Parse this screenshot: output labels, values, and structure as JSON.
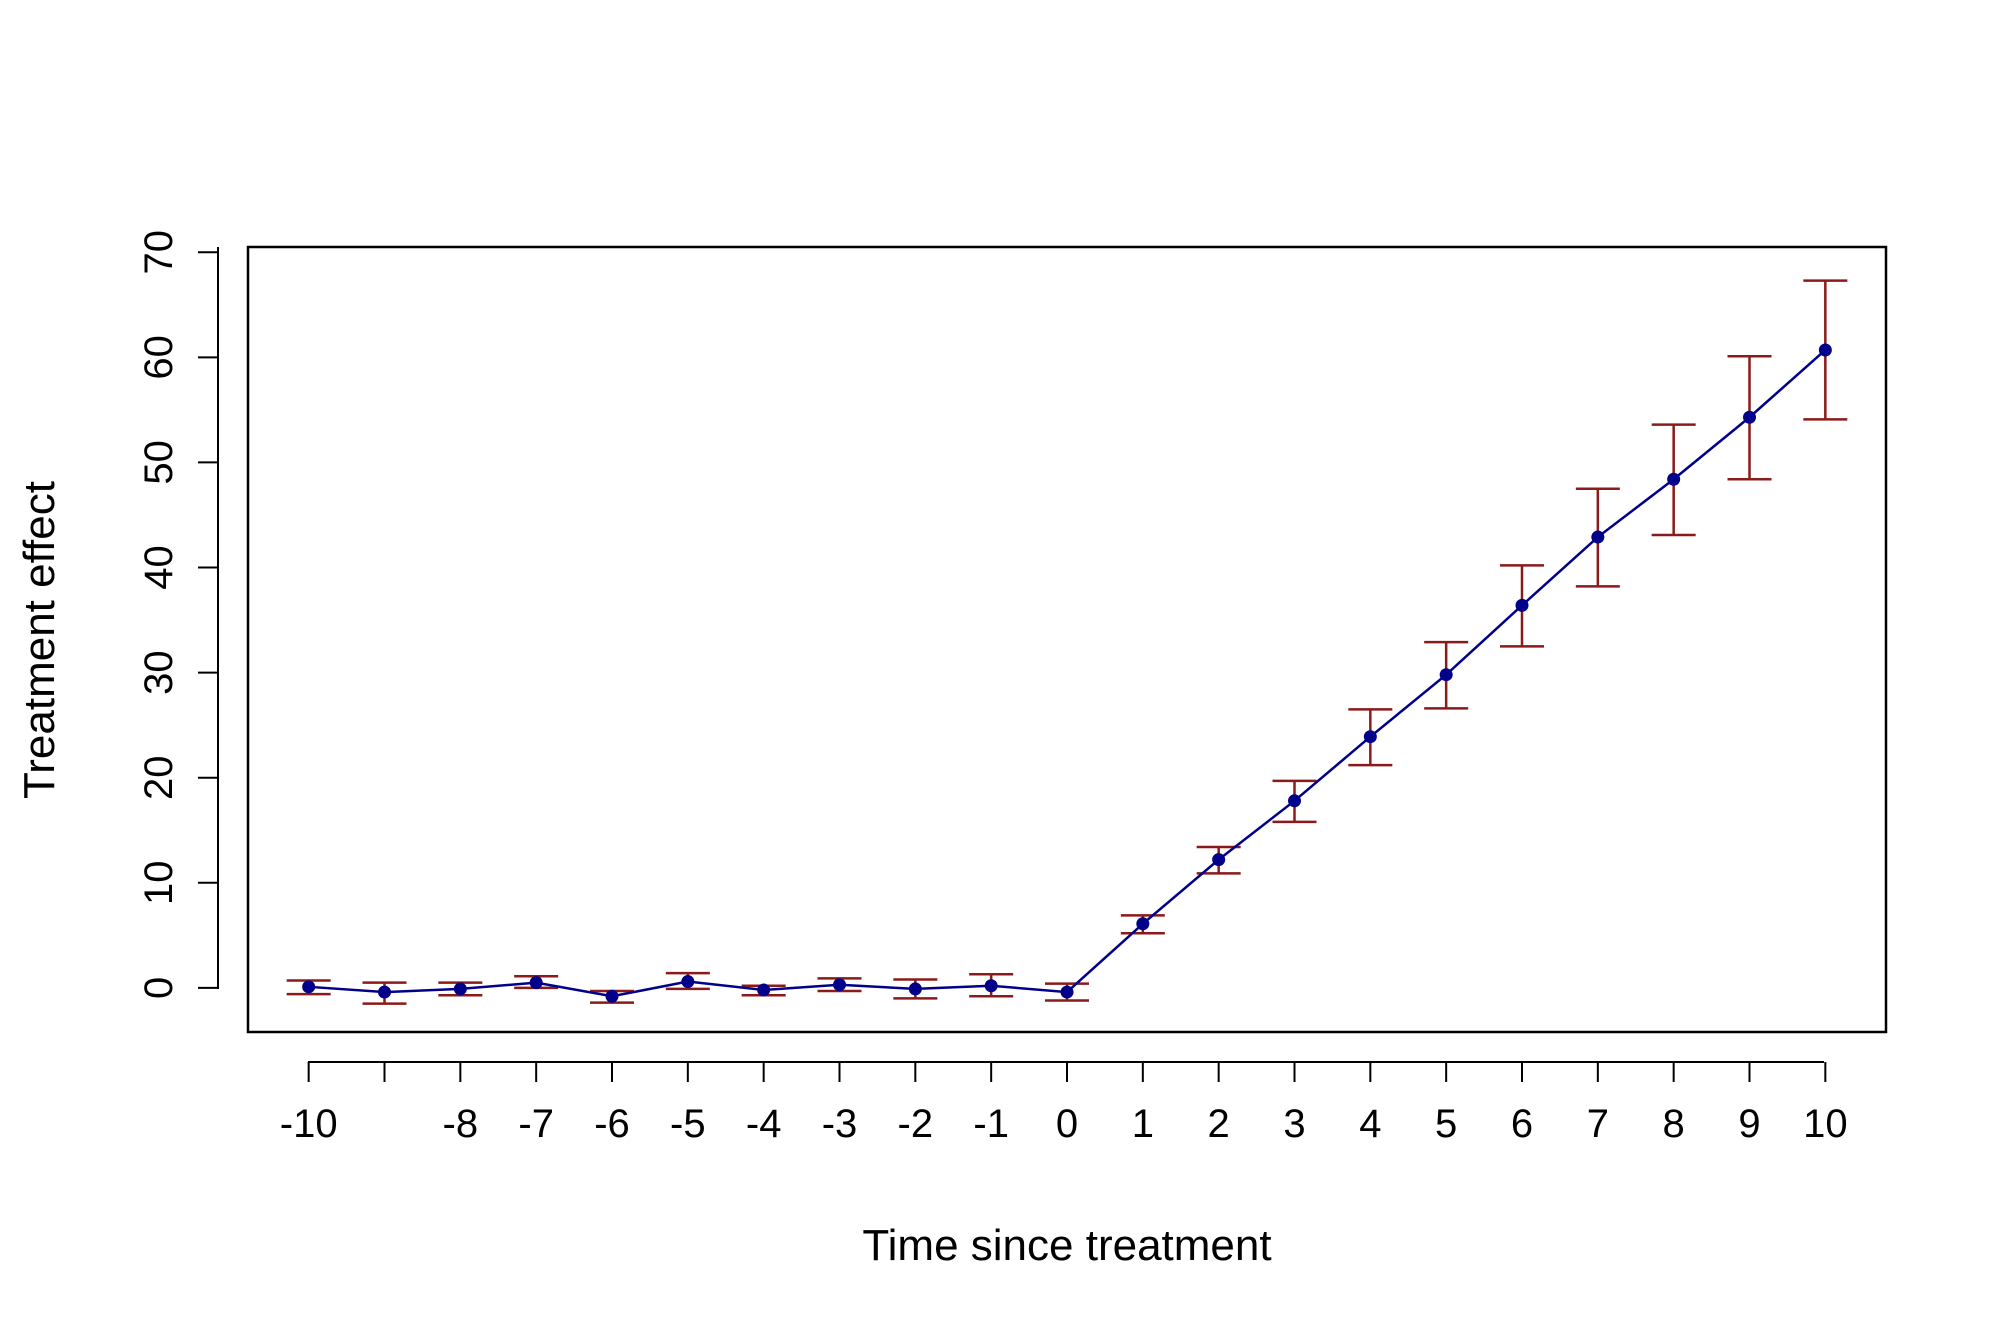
{
  "chart_data": {
    "type": "line",
    "title": "",
    "xlabel": "Time since treatment",
    "ylabel": "Treatment effect",
    "xlim": [
      -10.8,
      10.8
    ],
    "ylim": [
      -4.2,
      70.5
    ],
    "grid": false,
    "x_ticks": [
      -10,
      -9,
      -8,
      -7,
      -6,
      -5,
      -4,
      -3,
      -2,
      -1,
      0,
      1,
      2,
      3,
      4,
      5,
      6,
      7,
      8,
      9,
      10
    ],
    "x_tick_labels": [
      "-10",
      "",
      "-8",
      "-7",
      "-6",
      "-5",
      "-4",
      "-3",
      "-2",
      "-1",
      "0",
      "1",
      "2",
      "3",
      "4",
      "5",
      "6",
      "7",
      "8",
      "9",
      "10"
    ],
    "y_ticks": [
      0,
      10,
      20,
      30,
      40,
      50,
      60,
      70
    ],
    "y_tick_labels": [
      "0",
      "10",
      "20",
      "30",
      "40",
      "50",
      "60",
      "70"
    ],
    "colors": {
      "line": "#00008B",
      "error_bar": "#8B1A1A",
      "axis": "#000000"
    },
    "series": [
      {
        "x": [
          -10,
          -9,
          -8,
          -7,
          -6,
          -5,
          -4,
          -3,
          -2,
          -1,
          0,
          1,
          2,
          3,
          4,
          5,
          6,
          7,
          8,
          9,
          10
        ],
        "y": [
          0.1,
          -0.4,
          -0.1,
          0.5,
          -0.8,
          0.6,
          -0.2,
          0.3,
          -0.1,
          0.2,
          -0.4,
          6.1,
          12.2,
          17.8,
          23.9,
          29.8,
          36.4,
          42.9,
          48.4,
          54.3,
          60.7
        ],
        "lower": [
          -0.6,
          -1.5,
          -0.7,
          0.0,
          -1.4,
          -0.1,
          -0.7,
          -0.3,
          -1.0,
          -0.8,
          -1.2,
          5.2,
          10.9,
          15.8,
          21.2,
          26.6,
          32.5,
          38.2,
          43.1,
          48.4,
          54.1
        ],
        "upper": [
          0.7,
          0.5,
          0.5,
          1.1,
          -0.3,
          1.4,
          0.2,
          0.9,
          0.8,
          1.3,
          0.4,
          6.9,
          13.4,
          19.7,
          26.5,
          32.9,
          40.2,
          47.5,
          53.6,
          60.1,
          67.3
        ]
      }
    ]
  }
}
